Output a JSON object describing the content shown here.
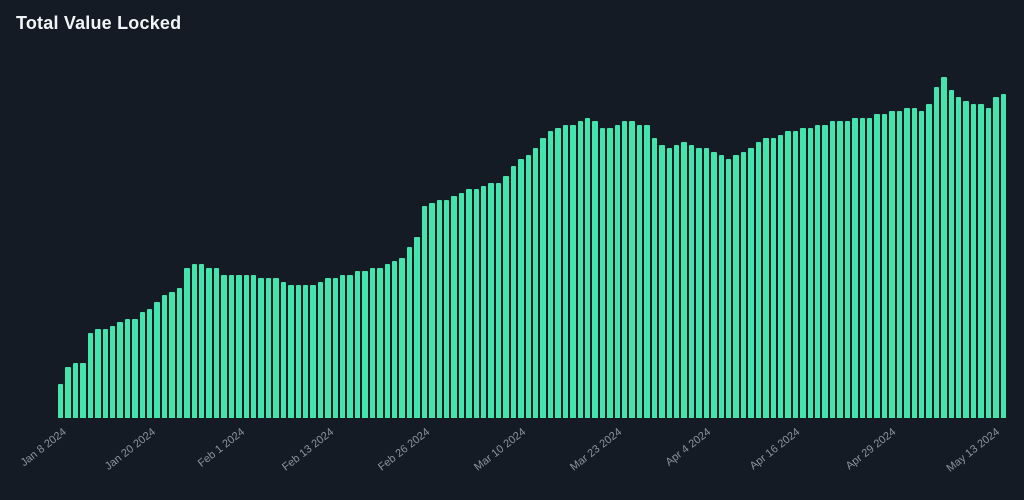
{
  "chart_data": {
    "type": "bar",
    "title": "Total Value Locked",
    "grid": false,
    "legend": null,
    "background": "#141b24",
    "bar_color": "#43e5ac",
    "title_color": "#f2f5f8",
    "tick_label_color": "#8b949e",
    "ylim": [
      0,
      102
    ],
    "y_axis": {
      "visible": false
    },
    "x_axis": {
      "interval": "daily",
      "first_bar_label": "Jan 8 2024",
      "tick_labels": [
        "Jan 8 2024",
        "Jan 20 2024",
        "Feb 1 2024",
        "Feb 13 2024",
        "Feb 26 2024",
        "Mar 10 2024",
        "Mar 23 2024",
        "Apr 4 2024",
        "Apr 16 2024",
        "Apr 29 2024",
        "May 13 2024"
      ],
      "tick_indices": [
        0,
        12,
        24,
        36,
        49,
        62,
        75,
        87,
        99,
        112,
        126
      ],
      "label_rotation_deg": -38
    },
    "values": [
      10,
      15,
      16,
      16,
      25,
      26,
      26,
      27,
      28,
      29,
      29,
      31,
      32,
      34,
      36,
      37,
      38,
      44,
      45,
      45,
      44,
      44,
      42,
      42,
      42,
      42,
      42,
      41,
      41,
      41,
      40,
      39,
      39,
      39,
      39,
      40,
      41,
      41,
      42,
      42,
      43,
      43,
      44,
      44,
      45,
      46,
      47,
      50,
      53,
      62,
      63,
      64,
      64,
      65,
      66,
      67,
      67,
      68,
      69,
      69,
      71,
      74,
      76,
      77,
      79,
      82,
      84,
      85,
      86,
      86,
      87,
      88,
      87,
      85,
      85,
      86,
      87,
      87,
      86,
      86,
      82,
      80,
      79,
      80,
      81,
      80,
      79,
      79,
      78,
      77,
      76,
      77,
      78,
      79,
      81,
      82,
      82,
      83,
      84,
      84,
      85,
      85,
      86,
      86,
      87,
      87,
      87,
      88,
      88,
      88,
      89,
      89,
      90,
      90,
      91,
      91,
      90,
      92,
      97,
      100,
      96,
      94,
      93,
      92,
      92,
      91,
      94,
      95
    ]
  }
}
